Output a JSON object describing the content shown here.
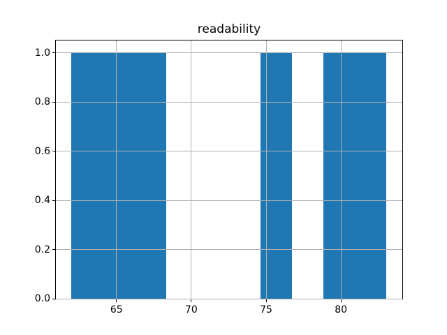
{
  "chart_data": {
    "type": "bar",
    "subtype": "histogram",
    "title": "readability",
    "xlabel": "",
    "ylabel": "",
    "bin_edges": [
      62.0,
      64.11,
      66.21,
      68.32,
      70.42,
      72.53,
      74.63,
      76.74,
      78.84,
      80.95,
      83.05
    ],
    "counts": [
      1,
      1,
      1,
      0,
      0,
      0,
      1,
      0,
      1,
      1
    ],
    "xlim": [
      60.95,
      84.1
    ],
    "ylim": [
      0,
      1.05
    ],
    "xticks": [
      65,
      70,
      75,
      80
    ],
    "xtick_labels": [
      "65",
      "70",
      "75",
      "80"
    ],
    "yticks": [
      0.0,
      0.2,
      0.4,
      0.6,
      0.8,
      1.0
    ],
    "ytick_labels": [
      "0.0",
      "0.2",
      "0.4",
      "0.6",
      "0.8",
      "1.0"
    ],
    "grid": true,
    "legend": null,
    "grid_color": "#b0b0b0",
    "bar_color": "#1f77b4",
    "spine_color": "#000000",
    "text_color": "#000000",
    "background": "#ffffff"
  }
}
